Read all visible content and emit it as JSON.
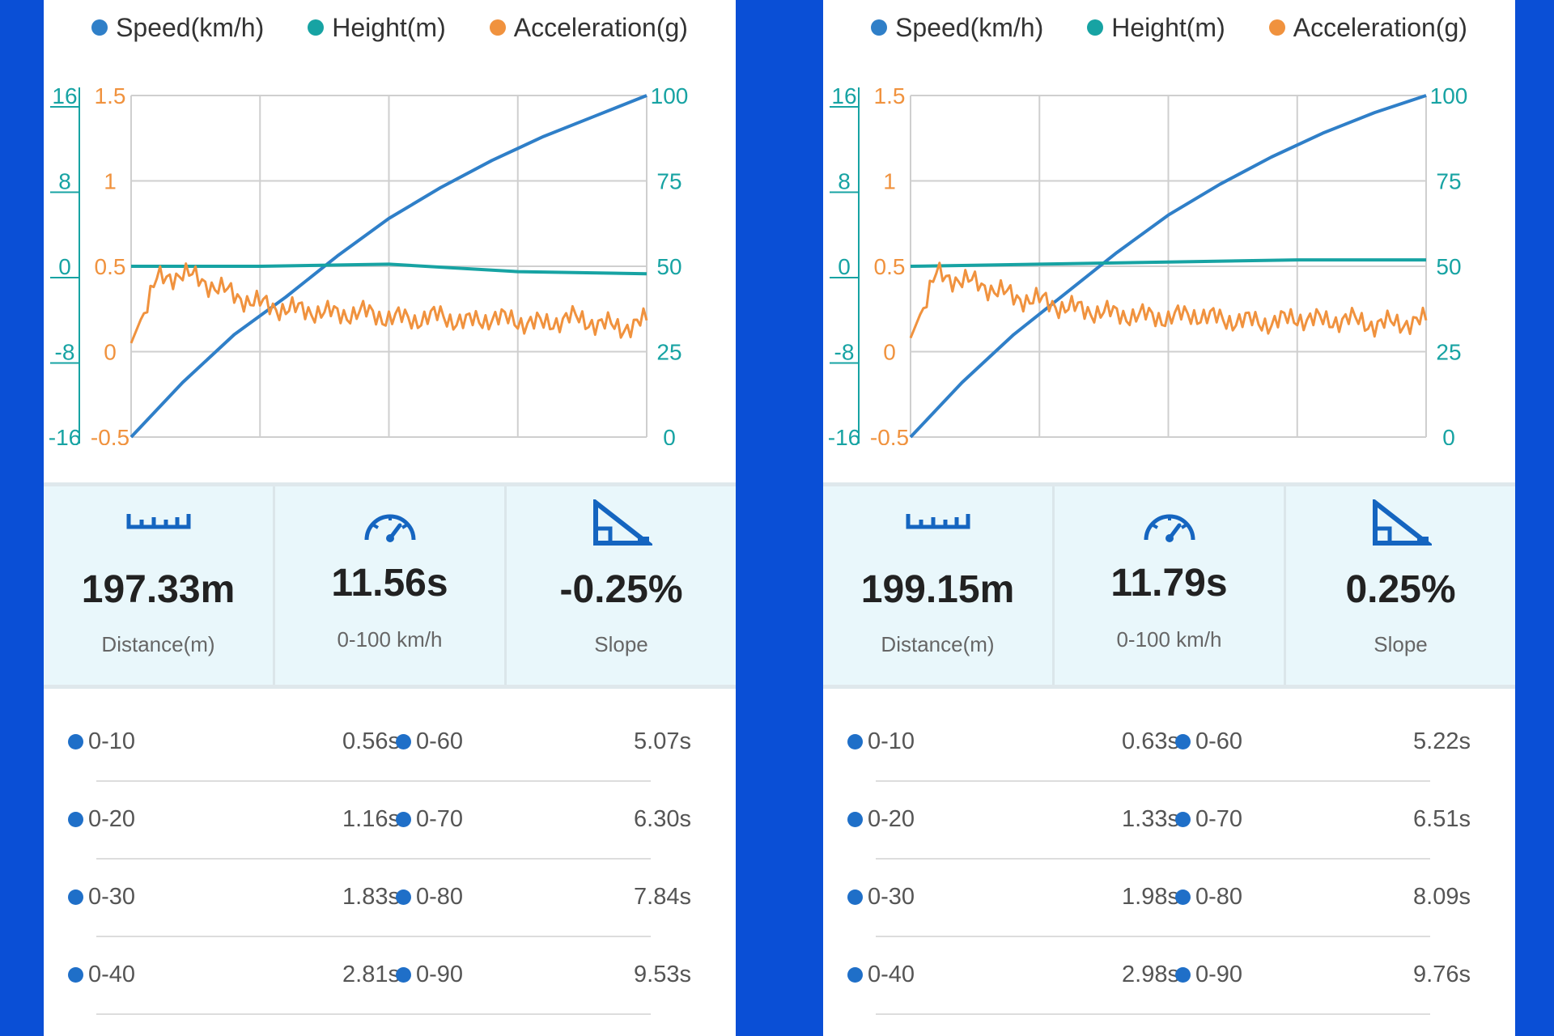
{
  "colors": {
    "speed": "#2f7fc8",
    "height": "#17a3a3",
    "acceleration": "#f0923e",
    "grid": "#cfcfcf",
    "icon": "#1565c0",
    "background": "#0a4fd6"
  },
  "legend": {
    "speed": "Speed(km/h)",
    "height": "Height(m)",
    "acceleration": "Acceleration(g)"
  },
  "panels": [
    {
      "stats": {
        "distance": "197.33m",
        "distance_label": "Distance(m)",
        "time": "11.56s",
        "time_label": "0-100 km/h",
        "slope": "-0.25%",
        "slope_label": "Slope"
      },
      "splits": [
        {
          "label": "0-10",
          "value": "0.56s",
          "label2": "0-60",
          "value2": "5.07s"
        },
        {
          "label": "0-20",
          "value": "1.16s",
          "label2": "0-70",
          "value2": "6.30s"
        },
        {
          "label": "0-30",
          "value": "1.83s",
          "label2": "0-80",
          "value2": "7.84s"
        },
        {
          "label": "0-40",
          "value": "2.81s",
          "label2": "0-90",
          "value2": "9.53s"
        }
      ]
    },
    {
      "stats": {
        "distance": "199.15m",
        "distance_label": "Distance(m)",
        "time": "11.79s",
        "time_label": "0-100 km/h",
        "slope": "0.25%",
        "slope_label": "Slope"
      },
      "splits": [
        {
          "label": "0-10",
          "value": "0.63s",
          "label2": "0-60",
          "value2": "5.22s"
        },
        {
          "label": "0-20",
          "value": "1.33s",
          "label2": "0-70",
          "value2": "6.51s"
        },
        {
          "label": "0-30",
          "value": "1.98s",
          "label2": "0-80",
          "value2": "8.09s"
        },
        {
          "label": "0-40",
          "value": "2.98s",
          "label2": "0-90",
          "value2": "9.76s"
        }
      ]
    }
  ],
  "chart_data": [
    {
      "type": "line",
      "x_range": [
        0,
        1
      ],
      "axes": {
        "height": {
          "ticks": [
            "16",
            "8",
            "0",
            "-8",
            "-16"
          ],
          "range": [
            -16,
            16
          ]
        },
        "acceleration": {
          "ticks": [
            "1.5",
            "1",
            "0.5",
            "0",
            "-0.5"
          ],
          "range": [
            -0.5,
            1.5
          ]
        },
        "speed": {
          "ticks": [
            "100",
            "75",
            "50",
            "25",
            "0"
          ],
          "range": [
            0,
            100
          ]
        }
      },
      "grid": true,
      "legend_position": "top",
      "series": [
        {
          "name": "Speed(km/h)",
          "axis": "speed",
          "x": [
            0,
            0.1,
            0.2,
            0.3,
            0.4,
            0.5,
            0.6,
            0.7,
            0.8,
            0.9,
            1.0
          ],
          "values": [
            0,
            16,
            30,
            41,
            53,
            64,
            73,
            81,
            88,
            94,
            100
          ]
        },
        {
          "name": "Height(m)",
          "axis": "height",
          "x": [
            0,
            0.25,
            0.5,
            0.75,
            1.0
          ],
          "values": [
            0,
            0,
            0.2,
            -0.5,
            -0.7
          ]
        },
        {
          "name": "Acceleration(g)",
          "axis": "acceleration",
          "x": [
            0,
            0.05,
            0.1,
            0.15,
            0.2,
            0.25,
            0.3,
            0.35,
            0.4,
            0.45,
            0.5,
            0.55,
            0.6,
            0.65,
            0.7,
            0.75,
            0.8,
            0.85,
            0.9,
            0.95,
            1.0
          ],
          "values": [
            0.05,
            0.42,
            0.46,
            0.4,
            0.33,
            0.28,
            0.25,
            0.24,
            0.22,
            0.23,
            0.2,
            0.19,
            0.21,
            0.17,
            0.2,
            0.18,
            0.16,
            0.2,
            0.17,
            0.14,
            0.18
          ]
        }
      ]
    },
    {
      "type": "line",
      "x_range": [
        0,
        1
      ],
      "axes": {
        "height": {
          "ticks": [
            "16",
            "8",
            "0",
            "-8",
            "-16"
          ],
          "range": [
            -16,
            16
          ]
        },
        "acceleration": {
          "ticks": [
            "1.5",
            "1",
            "0.5",
            "0",
            "-0.5"
          ],
          "range": [
            -0.5,
            1.5
          ]
        },
        "speed": {
          "ticks": [
            "100",
            "75",
            "50",
            "25",
            "0"
          ],
          "range": [
            0,
            100
          ]
        }
      },
      "grid": true,
      "legend_position": "top",
      "series": [
        {
          "name": "Speed(km/h)",
          "axis": "speed",
          "x": [
            0,
            0.1,
            0.2,
            0.3,
            0.4,
            0.5,
            0.6,
            0.7,
            0.8,
            0.9,
            1.0
          ],
          "values": [
            0,
            16,
            30,
            42,
            54,
            65,
            74,
            82,
            89,
            95,
            100
          ]
        },
        {
          "name": "Height(m)",
          "axis": "height",
          "x": [
            0,
            0.25,
            0.5,
            0.75,
            1.0
          ],
          "values": [
            0,
            0.2,
            0.4,
            0.6,
            0.6
          ]
        },
        {
          "name": "Acceleration(g)",
          "axis": "acceleration",
          "x": [
            0,
            0.05,
            0.1,
            0.15,
            0.2,
            0.25,
            0.3,
            0.35,
            0.4,
            0.45,
            0.5,
            0.55,
            0.6,
            0.65,
            0.7,
            0.75,
            0.8,
            0.85,
            0.9,
            0.95,
            1.0
          ],
          "values": [
            0.08,
            0.45,
            0.42,
            0.38,
            0.32,
            0.3,
            0.26,
            0.24,
            0.22,
            0.21,
            0.2,
            0.22,
            0.19,
            0.18,
            0.17,
            0.2,
            0.18,
            0.19,
            0.16,
            0.17,
            0.18
          ]
        }
      ]
    }
  ]
}
